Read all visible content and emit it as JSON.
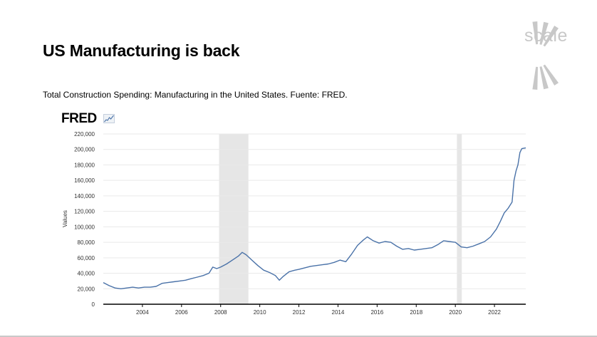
{
  "slide": {
    "title": "US Manufacturing is back",
    "subtitle": "Total Construction Spending: Manufacturing in the United States. Fuente: FRED.",
    "logo_text": "scale",
    "fred_badge": "FRED"
  },
  "colors": {
    "series_line": "#4a72a8",
    "recession_shade": "#e6e6e6",
    "grid": "#e9e9e9",
    "logo": "#c8c8c8"
  },
  "icons": [
    "scale-logo-icon",
    "fred-graph-icon"
  ],
  "chart_data": {
    "type": "line",
    "title": "",
    "xlabel": "",
    "ylabel": "Values",
    "xlim": [
      2002.0,
      2023.6
    ],
    "ylim": [
      0,
      220000
    ],
    "y_ticks": [
      0,
      20000,
      40000,
      60000,
      80000,
      100000,
      120000,
      140000,
      160000,
      180000,
      200000,
      220000
    ],
    "y_tick_labels": [
      "0",
      "20,000",
      "40,000",
      "60,000",
      "80,000",
      "100,000",
      "120,000",
      "140,000",
      "160,000",
      "180,000",
      "200,000",
      "220,000"
    ],
    "x_ticks": [
      2004,
      2006,
      2008,
      2010,
      2012,
      2014,
      2016,
      2018,
      2020,
      2022
    ],
    "x_tick_labels": [
      "2004",
      "2006",
      "2008",
      "2010",
      "2012",
      "2014",
      "2016",
      "2018",
      "2020",
      "2022"
    ],
    "grid": true,
    "recessions": [
      [
        2007.92,
        2009.42
      ],
      [
        2020.08,
        2020.33
      ]
    ],
    "series": [
      {
        "x": [
          2002.0,
          2002.3,
          2002.6,
          2002.9,
          2003.2,
          2003.5,
          2003.8,
          2004.1,
          2004.4,
          2004.7,
          2005.0,
          2005.3,
          2005.6,
          2005.9,
          2006.2,
          2006.5,
          2006.8,
          2007.1,
          2007.4,
          2007.6,
          2007.8,
          2008.0,
          2008.3,
          2008.6,
          2008.9,
          2009.1,
          2009.3,
          2009.6,
          2009.9,
          2010.2,
          2010.5,
          2010.8,
          2011.0,
          2011.2,
          2011.5,
          2011.8,
          2012.0,
          2012.3,
          2012.6,
          2012.9,
          2013.2,
          2013.5,
          2013.8,
          2014.1,
          2014.4,
          2014.7,
          2015.0,
          2015.3,
          2015.5,
          2015.8,
          2016.1,
          2016.4,
          2016.7,
          2017.0,
          2017.3,
          2017.6,
          2017.9,
          2018.2,
          2018.5,
          2018.8,
          2019.1,
          2019.4,
          2019.7,
          2020.0,
          2020.3,
          2020.6,
          2020.9,
          2021.2,
          2021.5,
          2021.8,
          2022.1,
          2022.3,
          2022.5,
          2022.7,
          2022.9,
          2023.0,
          2023.1,
          2023.2,
          2023.3,
          2023.4,
          2023.6
        ],
        "values": [
          28000,
          24000,
          21000,
          20000,
          21000,
          22000,
          21000,
          22000,
          22000,
          23000,
          27000,
          28000,
          29000,
          30000,
          31000,
          33000,
          35000,
          37000,
          40000,
          48000,
          46000,
          48000,
          52000,
          57000,
          62000,
          67000,
          64000,
          57000,
          50000,
          44000,
          41000,
          37000,
          31000,
          36000,
          42000,
          44000,
          45000,
          47000,
          49000,
          50000,
          51000,
          52000,
          54000,
          57000,
          55000,
          65000,
          76000,
          83000,
          87000,
          82000,
          79000,
          81000,
          80000,
          75000,
          71000,
          72000,
          70000,
          71000,
          72000,
          73000,
          77000,
          82000,
          81000,
          80000,
          74000,
          73000,
          75000,
          78000,
          81000,
          87000,
          97000,
          107000,
          118000,
          124000,
          132000,
          160000,
          172000,
          180000,
          196000,
          201000,
          202000
        ]
      }
    ]
  }
}
